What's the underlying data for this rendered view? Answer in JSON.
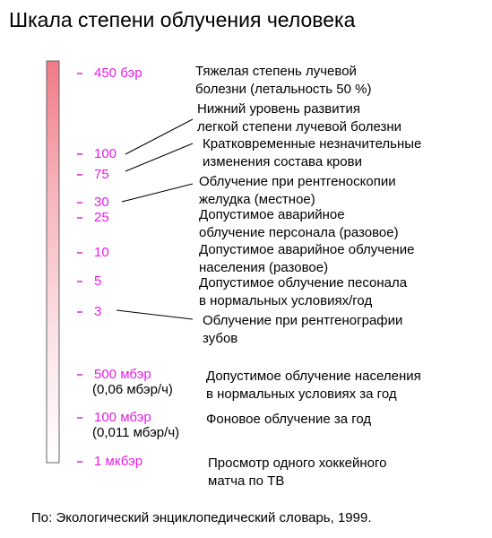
{
  "title": "Шкала степени облучения человека",
  "levels": [
    {
      "label": "450 бэр",
      "description": [
        "Тяжелая степень лучевой",
        "болезни (летальность 50 %)"
      ]
    },
    {
      "label": "100",
      "description": [
        "Нижний уровень развития",
        "легкой степени лучевой болезни"
      ]
    },
    {
      "label": "75",
      "description": [
        "Кратковременные незначительные",
        "изменения состава крови"
      ]
    },
    {
      "label": "30",
      "description": [
        "Облучение при рентгеноскопии",
        "желудка (местное)"
      ]
    },
    {
      "label": "25",
      "description": [
        "Допустимое аварийное",
        "облучение персонала (разовое)"
      ]
    },
    {
      "label": "10",
      "description": [
        "Допустимое аварийное облучение",
        "населения (разовое)"
      ]
    },
    {
      "label": "5",
      "description": [
        "Допустимое облучение песонала",
        "в нормальных условиях/год"
      ]
    },
    {
      "label": "3",
      "description": [
        "Облучение при рентгенографии",
        "зубов"
      ]
    },
    {
      "label": "500 мбэр",
      "note": "(0,06 мбэр/ч)",
      "description": [
        "Допустимое облучение населения",
        "в нормальных условиях за год"
      ]
    },
    {
      "label": "100 мбэр",
      "note": "(0,011 мбэр/ч)",
      "description": [
        "Фоновое облучение за год"
      ]
    },
    {
      "label": "1 мкбэр",
      "description": [
        "Просмотр одного хоккейного",
        "матча по ТВ"
      ]
    }
  ],
  "source": "По: Экологический энциклопедический словарь, 1999."
}
